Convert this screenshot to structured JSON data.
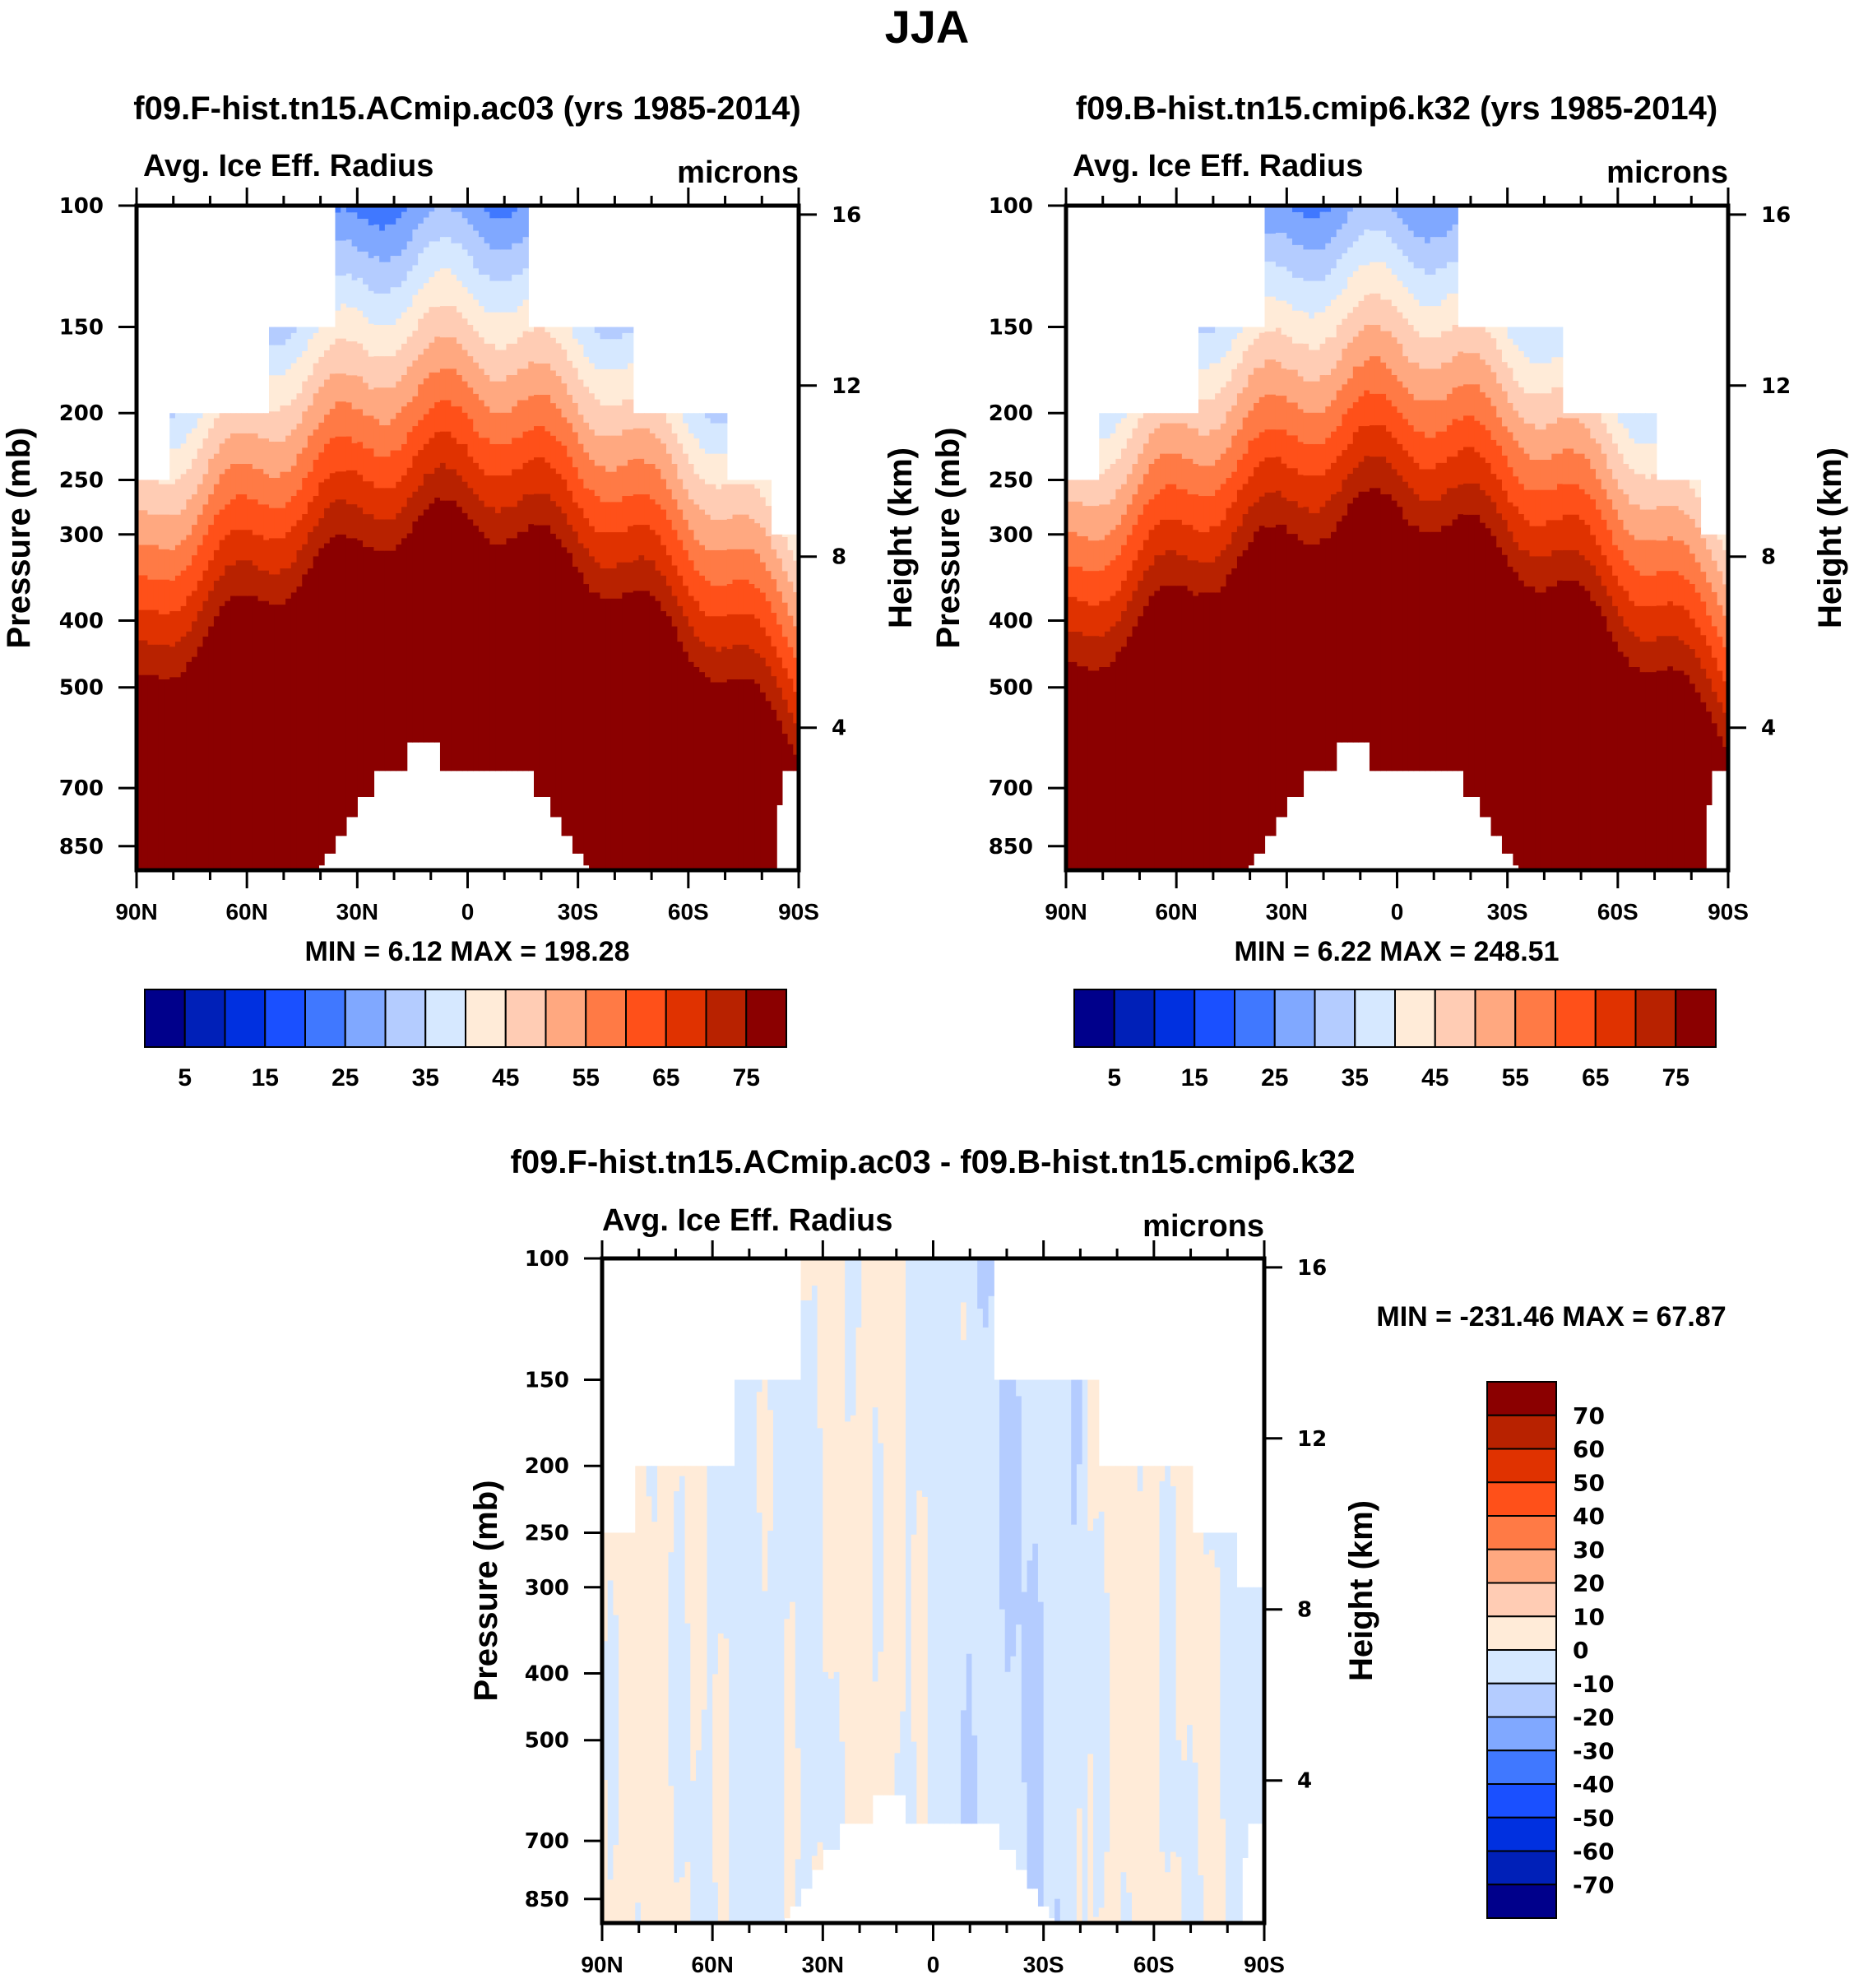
{
  "figure": {
    "season": "JJA"
  },
  "chart_data": [
    {
      "type": "heatmap",
      "id": "panel1",
      "title": "f09.F-hist.tn15.ACmip.ac03 (yrs 1985-2014)",
      "left_string": "Avg. Ice Eff. Radius",
      "right_string": "microns",
      "xlabel": "",
      "ylabel": "Pressure (mb)",
      "ylabel_right": "Height (km)",
      "x_ticks": [
        "90N",
        "60N",
        "30N",
        "0",
        "30S",
        "60S",
        "90S"
      ],
      "x_range": [
        90,
        -90
      ],
      "y_ticks": [
        100,
        150,
        200,
        250,
        300,
        400,
        500,
        700,
        850
      ],
      "y_range": [
        100,
        921
      ],
      "y_scale": "log",
      "right_ticks": [
        16,
        12,
        8,
        4
      ],
      "min": "6.12",
      "max": "198.28",
      "minmax_label": "MIN =   6.12  MAX = 198.28",
      "levels": [
        5,
        10,
        15,
        20,
        25,
        30,
        35,
        40,
        45,
        50,
        55,
        60,
        65,
        70,
        75
      ],
      "field": "absolute",
      "description": "Ice effective radius increases downward from ~20 microns near 100 mb in tropics to >75 microns below ~300 mb; masked white above tropopause-shaped step boundary and over orography near 15S-30N below 650 mb"
    },
    {
      "type": "heatmap",
      "id": "panel2",
      "title": "f09.B-hist.tn15.cmip6.k32 (yrs 1985-2014)",
      "left_string": "Avg. Ice Eff. Radius",
      "right_string": "microns",
      "xlabel": "",
      "ylabel": "Pressure (mb)",
      "ylabel_right": "Height (km)",
      "x_ticks": [
        "90N",
        "60N",
        "30N",
        "0",
        "30S",
        "60S",
        "90S"
      ],
      "x_range": [
        90,
        -90
      ],
      "y_ticks": [
        100,
        150,
        200,
        250,
        300,
        400,
        500,
        700,
        850
      ],
      "y_range": [
        100,
        921
      ],
      "y_scale": "log",
      "right_ticks": [
        16,
        12,
        8,
        4
      ],
      "min": "6.22",
      "max": "248.51",
      "minmax_label": "MIN =   6.22  MAX = 248.51",
      "levels": [
        5,
        10,
        15,
        20,
        25,
        30,
        35,
        40,
        45,
        50,
        55,
        60,
        65,
        70,
        75
      ],
      "field": "absolute"
    },
    {
      "type": "heatmap",
      "id": "panel3",
      "title": "f09.F-hist.tn15.ACmip.ac03 - f09.B-hist.tn15.cmip6.k32",
      "left_string": "Avg. Ice Eff. Radius",
      "right_string": "microns",
      "xlabel": "",
      "ylabel": "Pressure (mb)",
      "ylabel_right": "Height (km)",
      "x_ticks": [
        "90N",
        "60N",
        "30N",
        "0",
        "30S",
        "60S",
        "90S"
      ],
      "x_range": [
        90,
        -90
      ],
      "y_ticks": [
        100,
        150,
        200,
        250,
        300,
        400,
        500,
        700,
        850
      ],
      "y_range": [
        100,
        921
      ],
      "y_scale": "log",
      "right_ticks": [
        16,
        12,
        8,
        4
      ],
      "min": "-231.46",
      "max": "67.87",
      "minmax_label": "MIN = -231.46  MAX =  67.87",
      "levels": [
        -70,
        -60,
        -50,
        -40,
        -30,
        -20,
        -10,
        0,
        10,
        20,
        30,
        40,
        50,
        60,
        70
      ],
      "field": "difference",
      "description": "Differences mostly between -10 and +10 microns; positive (light orange) dominant in NH and tropics, negative (light blue) over ~10N-40S"
    }
  ],
  "colorbars": {
    "absolute": {
      "orientation": "horizontal",
      "labels": [
        "5",
        "15",
        "25",
        "35",
        "45",
        "55",
        "65",
        "75"
      ],
      "colors": [
        "#00008b",
        "#0020b8",
        "#0030e0",
        "#1a50ff",
        "#4078ff",
        "#80a8ff",
        "#b4ccff",
        "#d6e8ff",
        "#ffebd8",
        "#ffccb4",
        "#ffa880",
        "#ff7a45",
        "#ff5019",
        "#e03200",
        "#b82200",
        "#8b0000"
      ]
    },
    "difference": {
      "orientation": "vertical",
      "labels": [
        "70",
        "60",
        "50",
        "40",
        "30",
        "20",
        "10",
        "0",
        "-10",
        "-20",
        "-30",
        "-40",
        "-50",
        "-60",
        "-70"
      ],
      "colors": [
        "#8b0000",
        "#b82200",
        "#e03200",
        "#ff5019",
        "#ff7a45",
        "#ffa880",
        "#ffccb4",
        "#ffebd8",
        "#d6e8ff",
        "#b4ccff",
        "#80a8ff",
        "#4078ff",
        "#1a50ff",
        "#0030e0",
        "#0020b8",
        "#00008b"
      ]
    }
  }
}
